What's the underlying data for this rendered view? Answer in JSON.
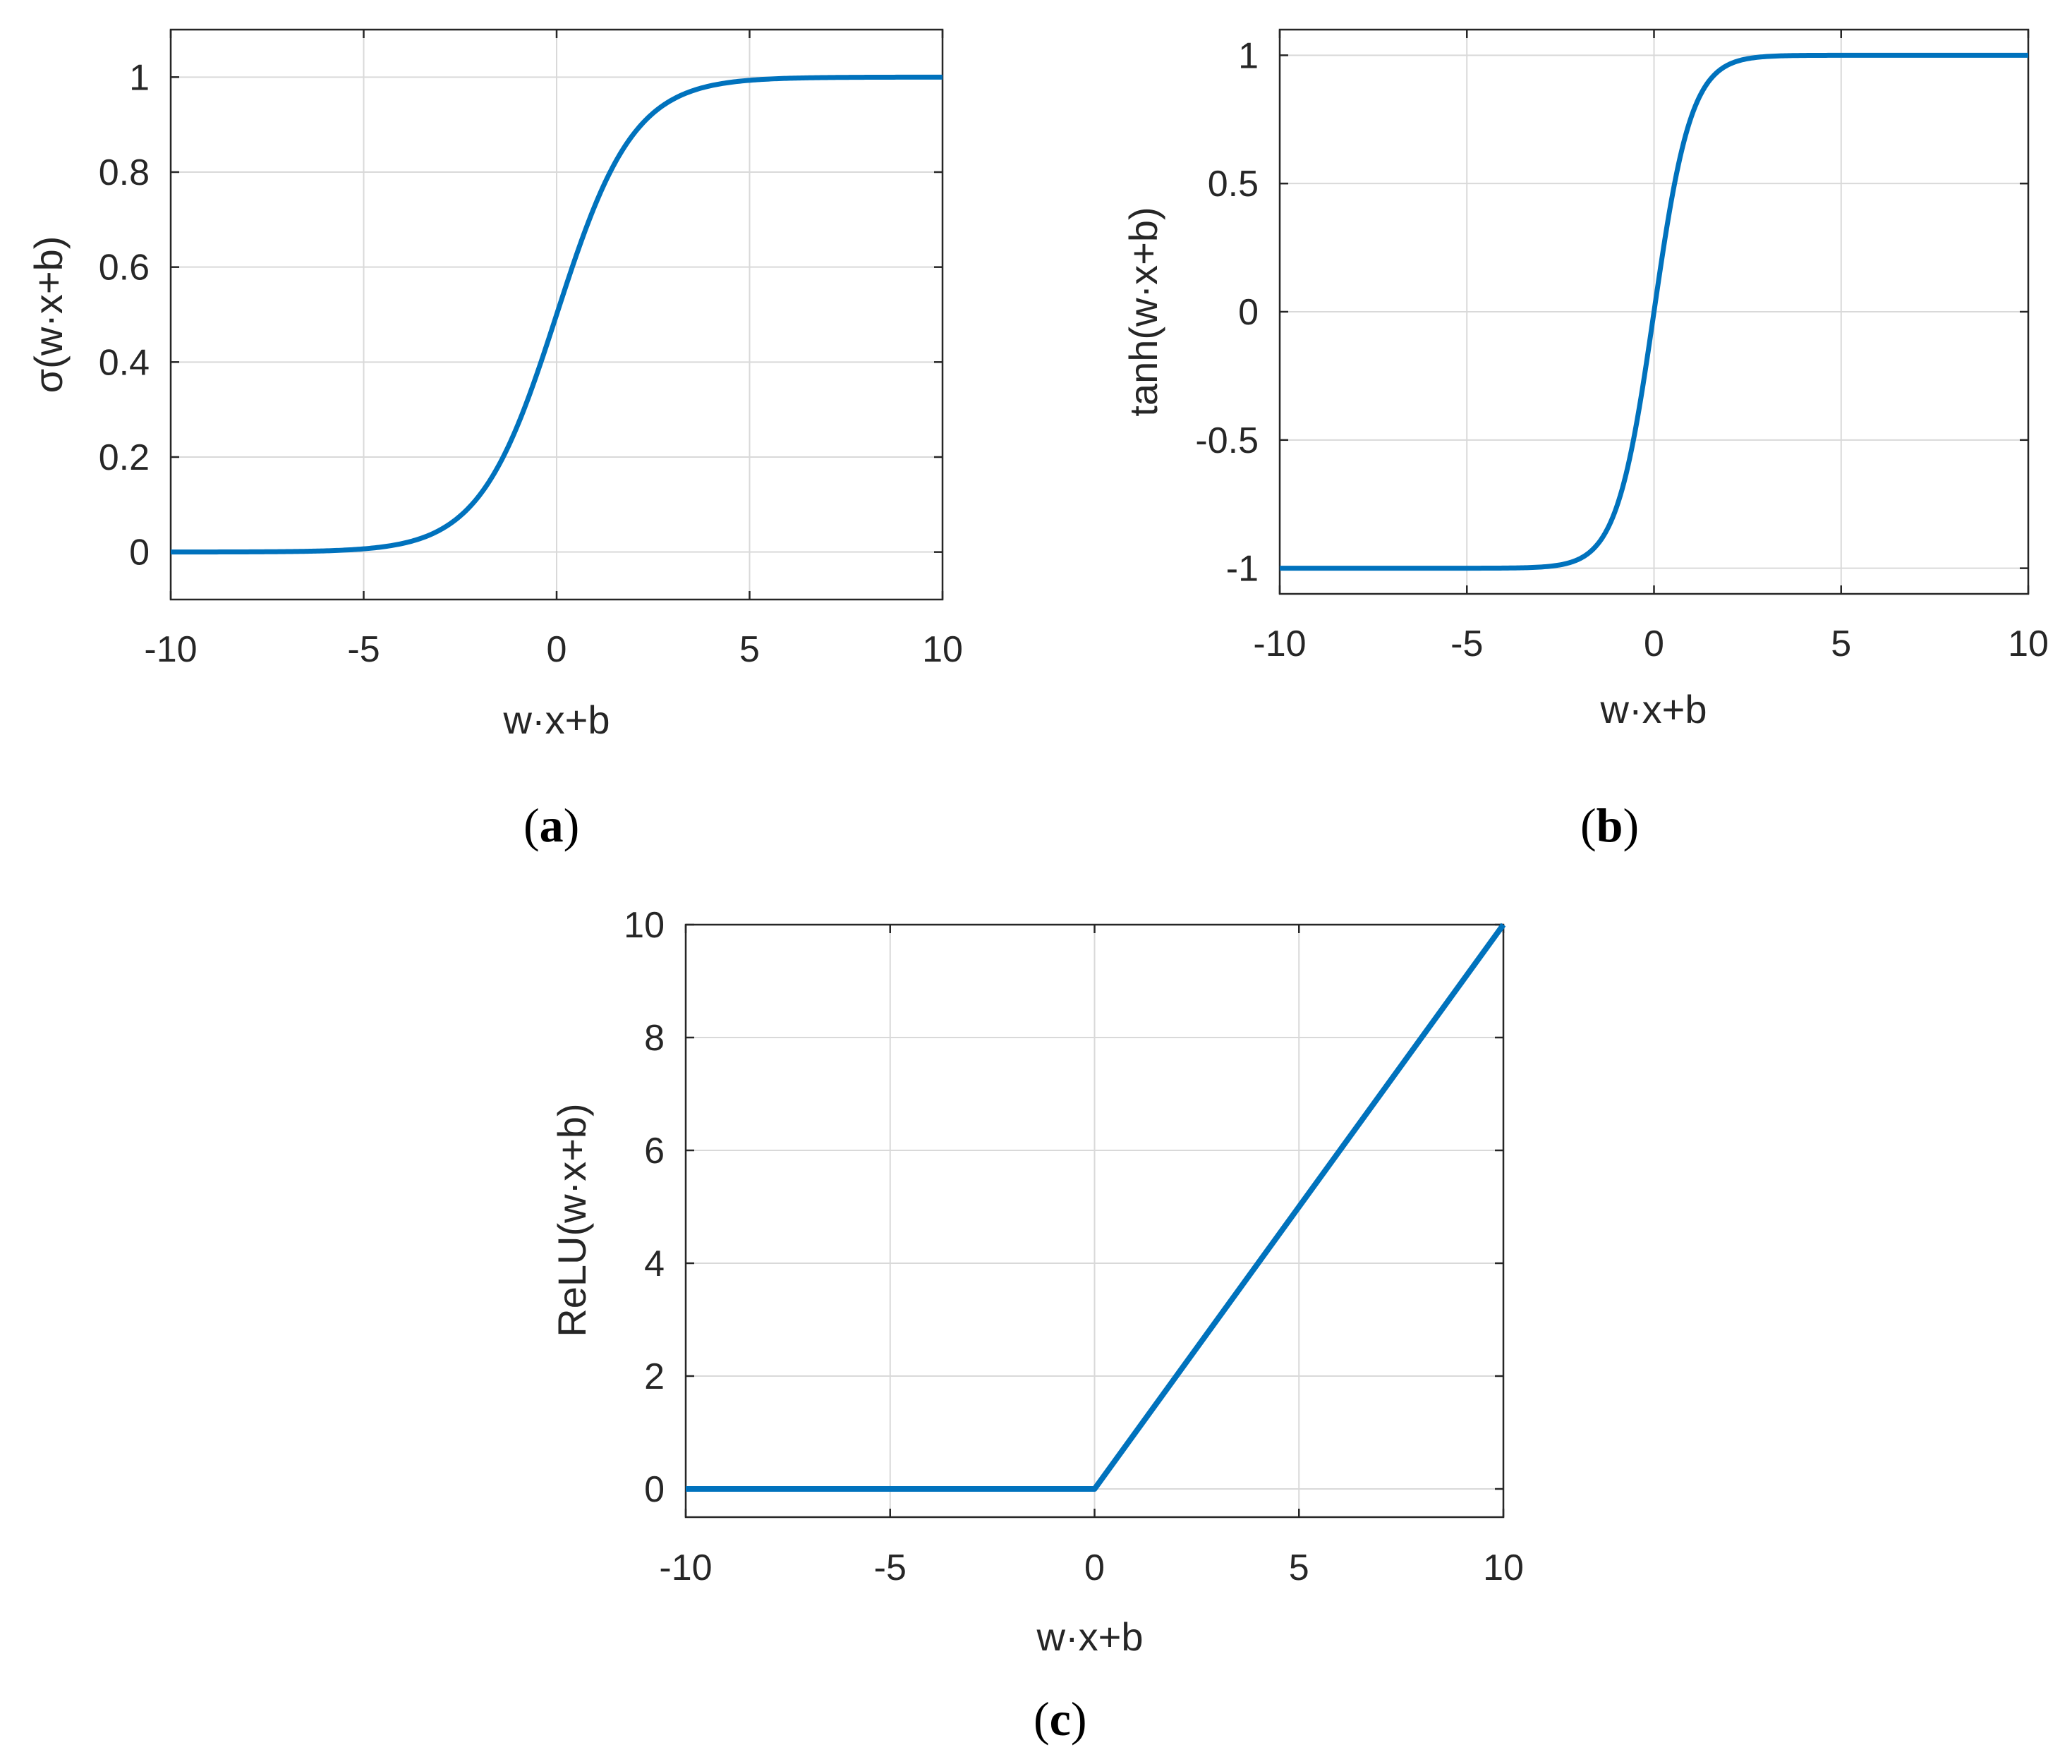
{
  "colors": {
    "line": "#0072BD",
    "grid": "#d9d9d9",
    "axis": "#262626"
  },
  "chart_data": [
    {
      "id": "a",
      "type": "line",
      "function": "sigmoid",
      "caption": {
        "open": "(",
        "letter": "a",
        "close": ")"
      },
      "xlabel": "w·x+b",
      "ylabel": "σ(w·x+b)",
      "xlim": [
        -10,
        10
      ],
      "ylim": [
        -0.1,
        1.1
      ],
      "xticks": [
        -10,
        -5,
        0,
        5,
        10
      ],
      "xtick_labels": [
        "-10",
        "-5",
        "0",
        "5",
        "10"
      ],
      "yticks": [
        0,
        0.2,
        0.4,
        0.6,
        0.8,
        1
      ],
      "ytick_labels": [
        "0",
        "0.2",
        "0.4",
        "0.6",
        "0.8",
        "1"
      ],
      "grid": true,
      "series": [
        {
          "name": "sigmoid",
          "x": [
            -10,
            -8,
            -6,
            -5,
            -4,
            -3,
            -2,
            -1,
            0,
            1,
            2,
            3,
            4,
            5,
            6,
            8,
            10
          ],
          "y": [
            0.0,
            0.0003,
            0.0025,
            0.0067,
            0.018,
            0.0474,
            0.1192,
            0.2689,
            0.5,
            0.7311,
            0.8808,
            0.9526,
            0.982,
            0.9933,
            0.9975,
            0.9997,
            1.0
          ]
        }
      ]
    },
    {
      "id": "b",
      "type": "line",
      "function": "tanh",
      "caption": {
        "open": "(",
        "letter": "b",
        "close": ")"
      },
      "xlabel": "w·x+b",
      "ylabel": "tanh(w·x+b)",
      "xlim": [
        -10,
        10
      ],
      "ylim": [
        -1.1,
        1.1
      ],
      "xticks": [
        -10,
        -5,
        0,
        5,
        10
      ],
      "xtick_labels": [
        "-10",
        "-5",
        "0",
        "5",
        "10"
      ],
      "yticks": [
        -1,
        -0.5,
        0,
        0.5,
        1
      ],
      "ytick_labels": [
        "-1",
        "-0.5",
        "0",
        "0.5",
        "1"
      ],
      "grid": true,
      "series": [
        {
          "name": "tanh",
          "x": [
            -10,
            -5,
            -3,
            -2,
            -1.5,
            -1,
            -0.5,
            0,
            0.5,
            1,
            1.5,
            2,
            3,
            5,
            10
          ],
          "y": [
            -1.0,
            -0.9999,
            -0.9951,
            -0.964,
            -0.9051,
            -0.7616,
            -0.4621,
            0.0,
            0.4621,
            0.7616,
            0.9051,
            0.964,
            0.9951,
            0.9999,
            1.0
          ]
        }
      ]
    },
    {
      "id": "c",
      "type": "line",
      "function": "relu",
      "caption": {
        "open": "(",
        "letter": "c",
        "close": ")"
      },
      "xlabel": "w·x+b",
      "ylabel": "ReLU(w·x+b)",
      "xlim": [
        -10,
        10
      ],
      "ylim": [
        -0.5,
        10
      ],
      "xticks": [
        -10,
        -5,
        0,
        5,
        10
      ],
      "xtick_labels": [
        "-10",
        "-5",
        "0",
        "5",
        "10"
      ],
      "yticks": [
        0,
        2,
        4,
        6,
        8,
        10
      ],
      "ytick_labels": [
        "0",
        "2",
        "4",
        "6",
        "8",
        "10"
      ],
      "grid": true,
      "series": [
        {
          "name": "relu",
          "x": [
            -10,
            -5,
            0,
            5,
            10
          ],
          "y": [
            0,
            0,
            0,
            5,
            10
          ]
        }
      ]
    }
  ]
}
